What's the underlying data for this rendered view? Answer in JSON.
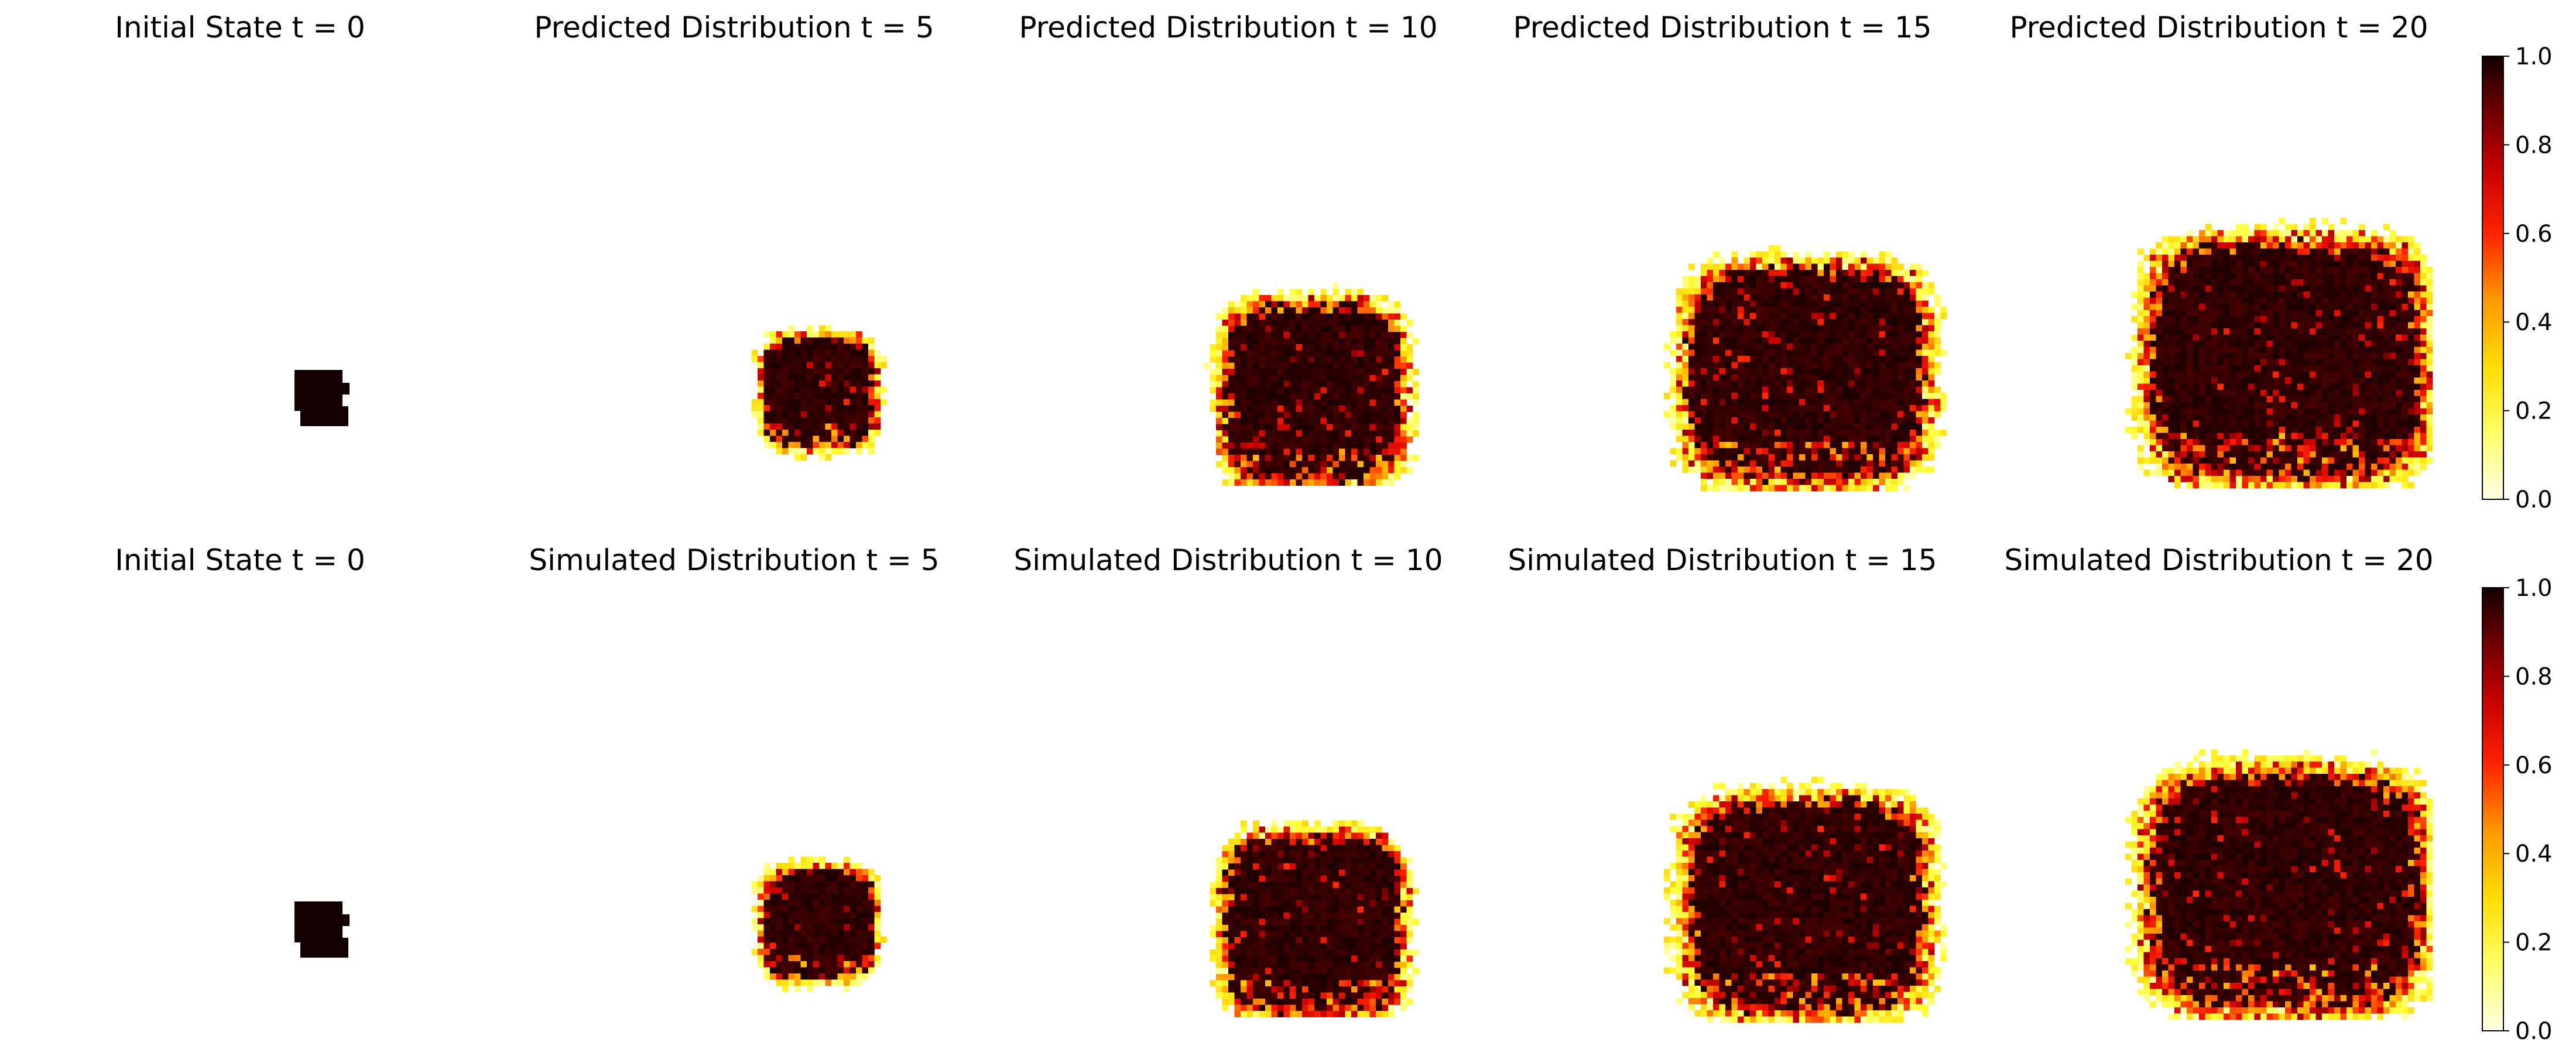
{
  "chart_data": [
    {
      "type": "heatmap",
      "row": "top",
      "titles": [
        "Initial State t = 0",
        "Predicted Distribution t = 5",
        "Predicted Distribution t = 10",
        "Predicted Distribution t = 15",
        "Predicted Distribution t = 20"
      ],
      "t": [
        0,
        5,
        10,
        15,
        20
      ],
      "colorbar": {
        "colormap": "hot_r",
        "range": [
          0.0,
          1.0
        ],
        "ticks": [
          "0.0",
          "0.2",
          "0.4",
          "0.6",
          "0.8",
          "1.0"
        ]
      },
      "axes": "off"
    },
    {
      "type": "heatmap",
      "row": "bottom",
      "titles": [
        "Initial State t = 0",
        "Simulated Distribution t = 5",
        "Simulated Distribution t = 10",
        "Simulated Distribution t = 15",
        "Simulated Distribution t = 20"
      ],
      "t": [
        0,
        5,
        10,
        15,
        20
      ],
      "colorbar": {
        "colormap": "hot_r",
        "range": [
          0.0,
          1.0
        ],
        "ticks": [
          "0.0",
          "0.2",
          "0.4",
          "0.6",
          "0.8",
          "1.0"
        ]
      },
      "axes": "off"
    }
  ],
  "colors": {
    "colormap_stops": [
      "#ffffe6",
      "#ffff33",
      "#ffcc00",
      "#ff8800",
      "#ff2200",
      "#cc0000",
      "#6b0000",
      "#1a0000"
    ],
    "background": "#ffffff"
  }
}
